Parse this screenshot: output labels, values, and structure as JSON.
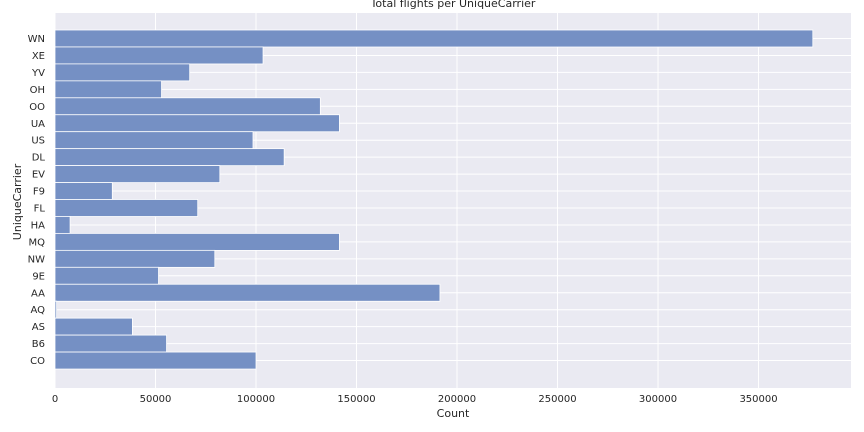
{
  "chart_data": {
    "type": "bar",
    "orientation": "horizontal",
    "title": "Total flights per UniqueCarrier",
    "xlabel": "Count",
    "ylabel": "UniqueCarrier",
    "categories": [
      "WN",
      "XE",
      "YV",
      "OH",
      "OO",
      "UA",
      "US",
      "DL",
      "EV",
      "F9",
      "FL",
      "HA",
      "MQ",
      "NW",
      "9E",
      "AA",
      "AQ",
      "AS",
      "B6",
      "CO"
    ],
    "values": [
      377000,
      103500,
      67000,
      53000,
      132000,
      141500,
      98500,
      114000,
      82000,
      28500,
      71000,
      7500,
      141500,
      79500,
      51500,
      191500,
      800,
      38500,
      55500,
      100000
    ],
    "xlim": [
      0,
      396000
    ],
    "xticks": [
      0,
      50000,
      100000,
      150000,
      200000,
      250000,
      300000,
      350000
    ],
    "grid": true,
    "colors": {
      "bar": "#7590c4",
      "bar_edge": "#ffffff",
      "plot_background": "#eaeaf2",
      "grid": "#ffffff",
      "text": "#262626"
    }
  }
}
